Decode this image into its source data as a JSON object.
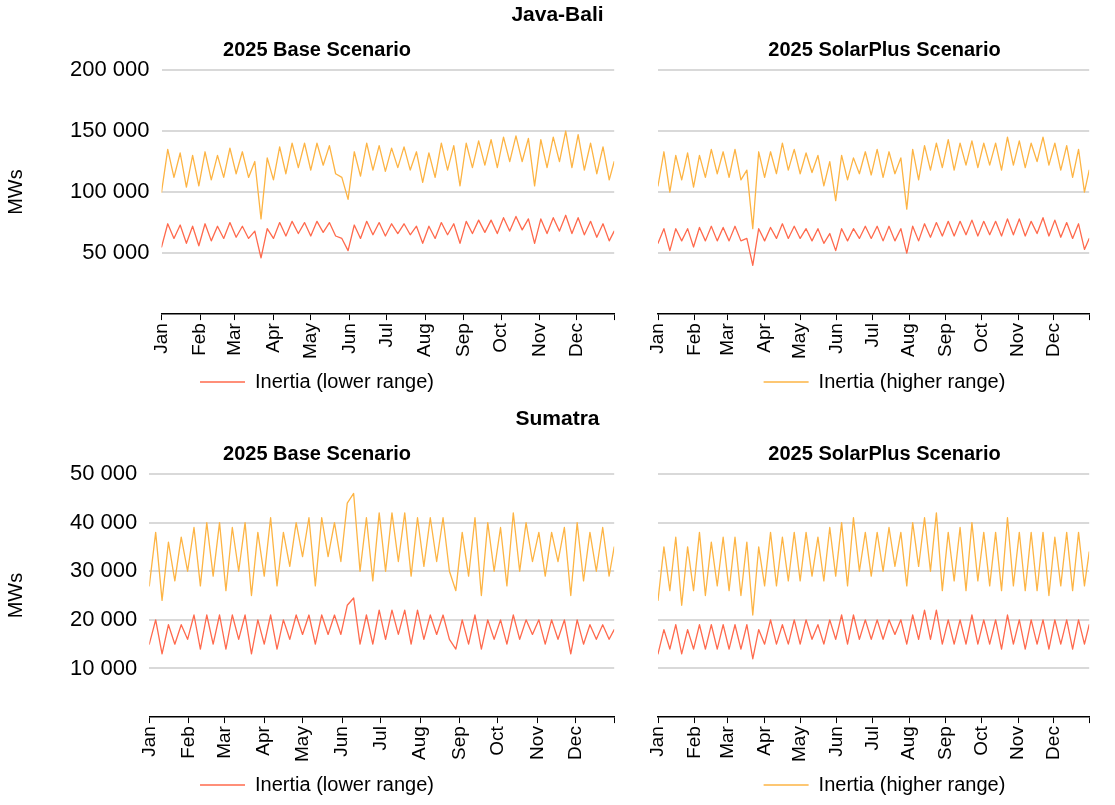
{
  "chart_data": [
    {
      "type": "line",
      "annotations": [
        "Java-Bali"
      ],
      "title": "2025 Base Scenario",
      "ylabel": "MWs",
      "legend": "bottom",
      "grid": "y",
      "line_style": "solid",
      "x": [
        "--01-01",
        "--01-06",
        "--01-11",
        "--01-16",
        "--01-21",
        "--01-26",
        "--01-31",
        "--02-05",
        "--02-10",
        "--02-15",
        "--02-20",
        "--02-25",
        "--03-02",
        "--03-07",
        "--03-12",
        "--03-17",
        "--03-22",
        "--03-27",
        "--04-01",
        "--04-06",
        "--04-11",
        "--04-16",
        "--04-21",
        "--04-26",
        "--05-01",
        "--05-06",
        "--05-11",
        "--05-16",
        "--05-21",
        "--05-26",
        "--05-31",
        "--06-05",
        "--06-10",
        "--06-15",
        "--06-20",
        "--06-25",
        "--06-30",
        "--07-05",
        "--07-10",
        "--07-15",
        "--07-20",
        "--07-25",
        "--07-30",
        "--08-04",
        "--08-09",
        "--08-14",
        "--08-19",
        "--08-24",
        "--08-29",
        "--09-03",
        "--09-08",
        "--09-13",
        "--09-18",
        "--09-23",
        "--09-28",
        "--10-03",
        "--10-08",
        "--10-13",
        "--10-18",
        "--10-23",
        "--10-28",
        "--11-02",
        "--11-07",
        "--11-12",
        "--11-17",
        "--11-22",
        "--11-27",
        "--12-02",
        "--12-07",
        "--12-12",
        "--12-17",
        "--12-22",
        "--12-27",
        "--12-31"
      ],
      "xlim": [
        "--01-01",
        "--12-31"
      ],
      "xticks": [
        {
          "value": "--01-01",
          "label": "Jan"
        },
        {
          "value": "--02-01",
          "label": "Feb"
        },
        {
          "value": "--03-01",
          "label": "Mar"
        },
        {
          "value": "--04-01",
          "label": "Apr"
        },
        {
          "value": "--05-01",
          "label": "May"
        },
        {
          "value": "--06-01",
          "label": "Jun"
        },
        {
          "value": "--07-01",
          "label": "Jul"
        },
        {
          "value": "--08-01",
          "label": "Aug"
        },
        {
          "value": "--09-01",
          "label": "Sep"
        },
        {
          "value": "--10-01",
          "label": "Oct"
        },
        {
          "value": "--11-01",
          "label": "Nov"
        },
        {
          "value": "--12-01",
          "label": "Dec"
        },
        {
          "value": "--12-31",
          "label": null
        }
      ],
      "ylim": [
        0,
        200000
      ],
      "yticks": [
        {
          "value": 50000,
          "label": "50 000"
        },
        {
          "value": 100000,
          "label": "100 000"
        },
        {
          "value": 150000,
          "label": "150 000"
        },
        {
          "value": 200000,
          "label": "200 000"
        }
      ],
      "series": [
        {
          "name": "Inertia (lower range)",
          "color": "#ff6a4d",
          "values": [
            55000,
            74000,
            62000,
            73000,
            58000,
            72000,
            56000,
            74000,
            60000,
            72000,
            62000,
            75000,
            63000,
            72000,
            62000,
            68000,
            46000,
            70000,
            62000,
            75000,
            64000,
            76000,
            66000,
            75000,
            64000,
            76000,
            67000,
            75000,
            64000,
            62000,
            52000,
            73000,
            62000,
            76000,
            65000,
            75000,
            64000,
            74000,
            66000,
            74000,
            65000,
            72000,
            58000,
            72000,
            62000,
            75000,
            65000,
            74000,
            58000,
            76000,
            66000,
            77000,
            67000,
            77000,
            66000,
            79000,
            68000,
            80000,
            69000,
            78000,
            58000,
            78000,
            66000,
            79000,
            68000,
            81000,
            66000,
            79000,
            65000,
            76000,
            63000,
            74000,
            60000,
            68000
          ]
        },
        {
          "color": "#fdb444",
          "values": [
            100000,
            135000,
            112000,
            132000,
            104000,
            130000,
            105000,
            133000,
            110000,
            130000,
            112000,
            136000,
            115000,
            133000,
            112000,
            125000,
            78000,
            128000,
            110000,
            137000,
            115000,
            140000,
            120000,
            140000,
            118000,
            140000,
            122000,
            138000,
            115000,
            112000,
            94000,
            133000,
            113000,
            140000,
            118000,
            138000,
            117000,
            136000,
            120000,
            137000,
            118000,
            133000,
            108000,
            132000,
            112000,
            140000,
            118000,
            138000,
            105000,
            140000,
            120000,
            142000,
            122000,
            143000,
            120000,
            145000,
            125000,
            146000,
            125000,
            144000,
            105000,
            143000,
            120000,
            145000,
            125000,
            150000,
            120000,
            147000,
            118000,
            140000,
            115000,
            137000,
            110000,
            125000
          ]
        }
      ]
    },
    {
      "type": "line",
      "title": "2025 SolarPlus Scenario",
      "legend": "bottom",
      "grid": "y",
      "line_style": "solid",
      "x": [
        "--01-01",
        "--01-06",
        "--01-11",
        "--01-16",
        "--01-21",
        "--01-26",
        "--01-31",
        "--02-05",
        "--02-10",
        "--02-15",
        "--02-20",
        "--02-25",
        "--03-02",
        "--03-07",
        "--03-12",
        "--03-17",
        "--03-22",
        "--03-27",
        "--04-01",
        "--04-06",
        "--04-11",
        "--04-16",
        "--04-21",
        "--04-26",
        "--05-01",
        "--05-06",
        "--05-11",
        "--05-16",
        "--05-21",
        "--05-26",
        "--05-31",
        "--06-05",
        "--06-10",
        "--06-15",
        "--06-20",
        "--06-25",
        "--06-30",
        "--07-05",
        "--07-10",
        "--07-15",
        "--07-20",
        "--07-25",
        "--07-30",
        "--08-04",
        "--08-09",
        "--08-14",
        "--08-19",
        "--08-24",
        "--08-29",
        "--09-03",
        "--09-08",
        "--09-13",
        "--09-18",
        "--09-23",
        "--09-28",
        "--10-03",
        "--10-08",
        "--10-13",
        "--10-18",
        "--10-23",
        "--10-28",
        "--11-02",
        "--11-07",
        "--11-12",
        "--11-17",
        "--11-22",
        "--11-27",
        "--12-02",
        "--12-07",
        "--12-12",
        "--12-17",
        "--12-22",
        "--12-27",
        "--12-31"
      ],
      "xlim": [
        "--01-01",
        "--12-31"
      ],
      "xticks": [
        {
          "value": "--01-01",
          "label": "Jan"
        },
        {
          "value": "--02-01",
          "label": "Feb"
        },
        {
          "value": "--03-01",
          "label": "Mar"
        },
        {
          "value": "--04-01",
          "label": "Apr"
        },
        {
          "value": "--05-01",
          "label": "May"
        },
        {
          "value": "--06-01",
          "label": "Jun"
        },
        {
          "value": "--07-01",
          "label": "Jul"
        },
        {
          "value": "--08-01",
          "label": "Aug"
        },
        {
          "value": "--09-01",
          "label": "Sep"
        },
        {
          "value": "--10-01",
          "label": "Oct"
        },
        {
          "value": "--11-01",
          "label": "Nov"
        },
        {
          "value": "--12-01",
          "label": "Dec"
        },
        {
          "value": "--12-31",
          "label": null
        }
      ],
      "tick_labels": "x",
      "ylim": [
        0,
        200000
      ],
      "yticks": [
        50000,
        100000,
        150000,
        200000
      ],
      "series": [
        {
          "color": "#ff6a4d",
          "values": [
            58000,
            70000,
            52000,
            70000,
            60000,
            70000,
            55000,
            71000,
            60000,
            72000,
            60000,
            71000,
            60000,
            72000,
            60000,
            62000,
            40000,
            70000,
            60000,
            71000,
            62000,
            74000,
            62000,
            72000,
            62000,
            70000,
            60000,
            70000,
            58000,
            66000,
            52000,
            70000,
            60000,
            70000,
            62000,
            72000,
            62000,
            72000,
            60000,
            72000,
            60000,
            70000,
            50000,
            72000,
            60000,
            74000,
            63000,
            75000,
            64000,
            76000,
            64000,
            76000,
            65000,
            77000,
            64000,
            76000,
            65000,
            76000,
            64000,
            78000,
            65000,
            78000,
            64000,
            76000,
            66000,
            79000,
            64000,
            77000,
            63000,
            75000,
            62000,
            74000,
            53000,
            62000
          ]
        },
        {
          "name": "Inertia (higher range)",
          "color": "#fdb444",
          "values": [
            105000,
            133000,
            100000,
            130000,
            110000,
            132000,
            104000,
            130000,
            112000,
            135000,
            115000,
            133000,
            112000,
            135000,
            110000,
            118000,
            70000,
            133000,
            112000,
            133000,
            115000,
            140000,
            118000,
            135000,
            115000,
            132000,
            116000,
            130000,
            105000,
            125000,
            93000,
            130000,
            110000,
            128000,
            115000,
            133000,
            114000,
            135000,
            112000,
            133000,
            115000,
            128000,
            86000,
            135000,
            110000,
            138000,
            118000,
            140000,
            120000,
            143000,
            118000,
            140000,
            122000,
            142000,
            120000,
            140000,
            122000,
            140000,
            118000,
            145000,
            122000,
            142000,
            120000,
            140000,
            125000,
            145000,
            122000,
            140000,
            118000,
            138000,
            112000,
            135000,
            100000,
            118000
          ]
        }
      ]
    },
    {
      "type": "line",
      "annotations": [
        "Sumatra"
      ],
      "title": "2025 Base Scenario",
      "ylabel": "MWs",
      "legend": "bottom",
      "grid": "y",
      "line_style": "solid",
      "x": [
        "--01-01",
        "--01-06",
        "--01-11",
        "--01-16",
        "--01-21",
        "--01-26",
        "--01-31",
        "--02-05",
        "--02-10",
        "--02-15",
        "--02-20",
        "--02-25",
        "--03-02",
        "--03-07",
        "--03-12",
        "--03-17",
        "--03-22",
        "--03-27",
        "--04-01",
        "--04-06",
        "--04-11",
        "--04-16",
        "--04-21",
        "--04-26",
        "--05-01",
        "--05-06",
        "--05-11",
        "--05-16",
        "--05-21",
        "--05-26",
        "--05-31",
        "--06-05",
        "--06-10",
        "--06-15",
        "--06-20",
        "--06-25",
        "--06-30",
        "--07-05",
        "--07-10",
        "--07-15",
        "--07-20",
        "--07-25",
        "--07-30",
        "--08-04",
        "--08-09",
        "--08-14",
        "--08-19",
        "--08-24",
        "--08-29",
        "--09-03",
        "--09-08",
        "--09-13",
        "--09-18",
        "--09-23",
        "--09-28",
        "--10-03",
        "--10-08",
        "--10-13",
        "--10-18",
        "--10-23",
        "--10-28",
        "--11-02",
        "--11-07",
        "--11-12",
        "--11-17",
        "--11-22",
        "--11-27",
        "--12-02",
        "--12-07",
        "--12-12",
        "--12-17",
        "--12-22",
        "--12-27",
        "--12-31"
      ],
      "xlim": [
        "--01-01",
        "--12-31"
      ],
      "xticks": [
        {
          "value": "--01-01",
          "label": "Jan"
        },
        {
          "value": "--02-01",
          "label": "Feb"
        },
        {
          "value": "--03-01",
          "label": "Mar"
        },
        {
          "value": "--04-01",
          "label": "Apr"
        },
        {
          "value": "--05-01",
          "label": "May"
        },
        {
          "value": "--06-01",
          "label": "Jun"
        },
        {
          "value": "--07-01",
          "label": "Jul"
        },
        {
          "value": "--08-01",
          "label": "Aug"
        },
        {
          "value": "--09-01",
          "label": "Sep"
        },
        {
          "value": "--10-01",
          "label": "Oct"
        },
        {
          "value": "--11-01",
          "label": "Nov"
        },
        {
          "value": "--12-01",
          "label": "Dec"
        },
        {
          "value": "--12-31",
          "label": null
        }
      ],
      "ylim": [
        0,
        50000
      ],
      "yticks": [
        {
          "value": 10000,
          "label": "10 000"
        },
        {
          "value": 20000,
          "label": "20 000"
        },
        {
          "value": 30000,
          "label": "30 000"
        },
        {
          "value": 40000,
          "label": "40 000"
        },
        {
          "value": 50000,
          "label": "50 000"
        }
      ],
      "series": [
        {
          "name": "Inertia (lower range)",
          "color": "#ff6a4d",
          "values": [
            15000,
            20000,
            13000,
            19000,
            15000,
            19000,
            16000,
            21000,
            14000,
            21000,
            15000,
            21000,
            14000,
            21000,
            16000,
            21000,
            13000,
            20000,
            15000,
            21000,
            14000,
            20000,
            16000,
            21000,
            17000,
            21000,
            15000,
            21000,
            17000,
            21000,
            17000,
            23000,
            24500,
            15000,
            21000,
            15000,
            22000,
            16000,
            22000,
            17000,
            22000,
            15000,
            22000,
            16000,
            21000,
            17000,
            21000,
            16000,
            14000,
            20000,
            15000,
            21000,
            14000,
            20000,
            16000,
            20000,
            15000,
            21000,
            16000,
            20000,
            17000,
            20000,
            15000,
            20000,
            16000,
            20000,
            13000,
            20000,
            15000,
            19000,
            16000,
            19000,
            16000,
            18000
          ]
        },
        {
          "color": "#fdb444",
          "values": [
            27000,
            38000,
            24000,
            36000,
            28000,
            37000,
            30000,
            39000,
            27000,
            40000,
            29000,
            40000,
            26000,
            39000,
            30000,
            40000,
            25000,
            38000,
            29000,
            41000,
            27000,
            38000,
            31000,
            40000,
            33000,
            41000,
            27000,
            41000,
            33000,
            40000,
            32000,
            44000,
            46000,
            30000,
            41000,
            28000,
            42000,
            30000,
            42000,
            32000,
            42000,
            29000,
            41000,
            31000,
            41000,
            32000,
            41000,
            30000,
            26000,
            38000,
            29000,
            41000,
            25000,
            40000,
            30000,
            39000,
            27000,
            42000,
            30000,
            40000,
            32000,
            38000,
            29000,
            38000,
            32000,
            39000,
            25000,
            40000,
            28000,
            38000,
            30000,
            39000,
            29000,
            35000
          ]
        }
      ]
    },
    {
      "type": "line",
      "title": "2025 SolarPlus Scenario",
      "legend": "bottom",
      "grid": "y",
      "line_style": "solid",
      "x": [
        "--01-01",
        "--01-06",
        "--01-11",
        "--01-16",
        "--01-21",
        "--01-26",
        "--01-31",
        "--02-05",
        "--02-10",
        "--02-15",
        "--02-20",
        "--02-25",
        "--03-02",
        "--03-07",
        "--03-12",
        "--03-17",
        "--03-22",
        "--03-27",
        "--04-01",
        "--04-06",
        "--04-11",
        "--04-16",
        "--04-21",
        "--04-26",
        "--05-01",
        "--05-06",
        "--05-11",
        "--05-16",
        "--05-21",
        "--05-26",
        "--05-31",
        "--06-05",
        "--06-10",
        "--06-15",
        "--06-20",
        "--06-25",
        "--06-30",
        "--07-05",
        "--07-10",
        "--07-15",
        "--07-20",
        "--07-25",
        "--07-30",
        "--08-04",
        "--08-09",
        "--08-14",
        "--08-19",
        "--08-24",
        "--08-29",
        "--09-03",
        "--09-08",
        "--09-13",
        "--09-18",
        "--09-23",
        "--09-28",
        "--10-03",
        "--10-08",
        "--10-13",
        "--10-18",
        "--10-23",
        "--10-28",
        "--11-02",
        "--11-07",
        "--11-12",
        "--11-17",
        "--11-22",
        "--11-27",
        "--12-02",
        "--12-07",
        "--12-12",
        "--12-17",
        "--12-22",
        "--12-27",
        "--12-31"
      ],
      "xlim": [
        "--01-01",
        "--12-31"
      ],
      "xticks": [
        {
          "value": "--01-01",
          "label": "Jan"
        },
        {
          "value": "--02-01",
          "label": "Feb"
        },
        {
          "value": "--03-01",
          "label": "Mar"
        },
        {
          "value": "--04-01",
          "label": "Apr"
        },
        {
          "value": "--05-01",
          "label": "May"
        },
        {
          "value": "--06-01",
          "label": "Jun"
        },
        {
          "value": "--07-01",
          "label": "Jul"
        },
        {
          "value": "--08-01",
          "label": "Aug"
        },
        {
          "value": "--09-01",
          "label": "Sep"
        },
        {
          "value": "--10-01",
          "label": "Oct"
        },
        {
          "value": "--11-01",
          "label": "Nov"
        },
        {
          "value": "--12-01",
          "label": "Dec"
        },
        {
          "value": "--12-31",
          "label": null
        }
      ],
      "tick_labels": "x",
      "ylim": [
        0,
        50000
      ],
      "yticks": [
        10000,
        20000,
        30000,
        40000,
        50000
      ],
      "series": [
        {
          "color": "#ff6a4d",
          "values": [
            13000,
            18000,
            14000,
            19000,
            13000,
            18000,
            14000,
            19000,
            14000,
            19000,
            14000,
            19000,
            14000,
            19000,
            14000,
            19000,
            12000,
            18000,
            15000,
            20000,
            15000,
            19000,
            15000,
            20000,
            15000,
            20000,
            16000,
            19000,
            15000,
            20000,
            16000,
            21000,
            15000,
            21000,
            16000,
            20000,
            16000,
            20000,
            16000,
            20000,
            17000,
            20000,
            15000,
            21000,
            16000,
            22000,
            16000,
            22000,
            15000,
            20000,
            15000,
            20000,
            15000,
            21000,
            15000,
            20000,
            15000,
            20000,
            14000,
            21000,
            15000,
            20000,
            14000,
            20000,
            15000,
            20000,
            14000,
            20000,
            15000,
            20000,
            14000,
            20000,
            15000,
            19000
          ]
        },
        {
          "name": "Inertia (higher range)",
          "color": "#fdb444",
          "values": [
            24000,
            35000,
            26000,
            37000,
            23000,
            35000,
            26000,
            38000,
            25000,
            36000,
            27000,
            37000,
            26000,
            37000,
            25000,
            36000,
            21000,
            35000,
            27000,
            38000,
            27000,
            37000,
            28000,
            38000,
            28000,
            38000,
            29000,
            37000,
            28000,
            39000,
            29000,
            40000,
            27000,
            41000,
            30000,
            38000,
            29000,
            38000,
            30000,
            39000,
            31000,
            38000,
            27000,
            40000,
            31000,
            41000,
            30000,
            42000,
            26000,
            38000,
            28000,
            39000,
            26000,
            40000,
            28000,
            38000,
            27000,
            38000,
            26000,
            41000,
            27000,
            38000,
            26000,
            38000,
            26000,
            38000,
            25000,
            37000,
            27000,
            38000,
            26000,
            38000,
            27000,
            34000
          ]
        }
      ]
    }
  ]
}
